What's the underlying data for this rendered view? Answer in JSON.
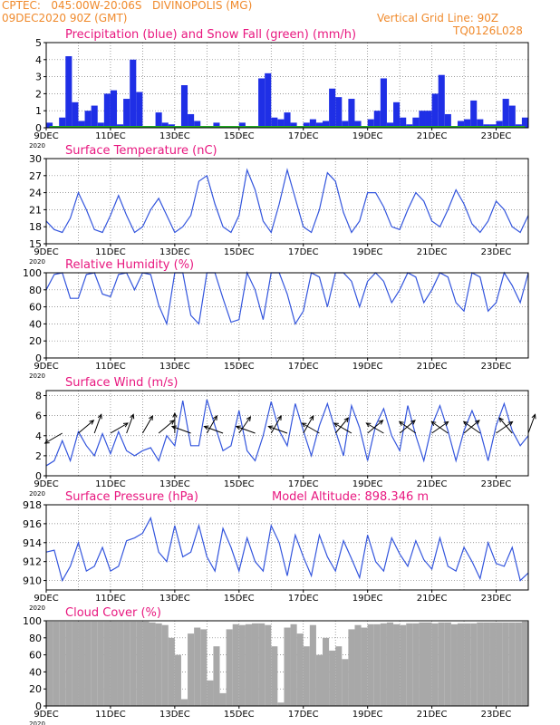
{
  "header": {
    "line1": "CPTEC:   045:00W-20:06S   DIVINOPOLIS (MG)",
    "line2": "09DEC2020 90Z (GMT)",
    "right1": "Vertical Grid Line: 90Z",
    "right2": "TQ0126L028",
    "color": "#f08a2c"
  },
  "x_axis": {
    "tick_labels": [
      "9DEC",
      "11DEC",
      "13DEC",
      "15DEC",
      "17DEC",
      "19DEC",
      "21DEC",
      "23DEC"
    ],
    "year_label": "2020",
    "days": 15
  },
  "colors": {
    "title": "#e8177f",
    "line": "#3355dd",
    "precip": "#1f2fe6",
    "snow": "#22aa22",
    "cloud": "#a8a8a8",
    "grid": "#7a7a7a"
  },
  "chart_data": [
    {
      "type": "bar",
      "title": "Precipitation (blue) and Snow Fall (green) (mm/h)",
      "ylim": [
        0,
        5
      ],
      "yticks": [
        "0",
        "1",
        "2",
        "3",
        "4",
        "5"
      ],
      "x_days": [
        0.1,
        0.3,
        0.5,
        0.7,
        0.9,
        1.1,
        1.3,
        1.5,
        1.7,
        1.9,
        2.1,
        2.3,
        2.5,
        2.7,
        2.9,
        3.1,
        3.3,
        3.5,
        3.7,
        3.9,
        4.1,
        4.3,
        4.5,
        4.7,
        4.9,
        5.1,
        5.3,
        5.5,
        5.7,
        5.9,
        6.1,
        6.3,
        6.5,
        6.7,
        6.9,
        7.1,
        7.3,
        7.5,
        7.7,
        7.9,
        8.1,
        8.3,
        8.5,
        8.7,
        8.9,
        9.1,
        9.3,
        9.5,
        9.7,
        9.9,
        10.1,
        10.3,
        10.5,
        10.7,
        10.9,
        11.1,
        11.3,
        11.5,
        11.7,
        11.9,
        12.1,
        12.3,
        12.5,
        12.7,
        12.9,
        13.1,
        13.3,
        13.5,
        13.7,
        13.9,
        14.1,
        14.3,
        14.5,
        14.7,
        14.9
      ],
      "series": [
        {
          "name": "Precipitation",
          "values": [
            0.3,
            0.1,
            0.6,
            4.2,
            1.5,
            0.4,
            1.0,
            1.3,
            0.3,
            2.0,
            2.2,
            0.2,
            1.7,
            4.0,
            2.1,
            0.1,
            0.0,
            0.9,
            0.3,
            0.2,
            0.1,
            2.5,
            0.8,
            0.4,
            0.0,
            0.1,
            0.3,
            0.1,
            0.0,
            0.1,
            0.3,
            0.1,
            0.1,
            2.9,
            3.2,
            0.6,
            0.5,
            0.9,
            0.3,
            0.0,
            0.3,
            0.5,
            0.3,
            0.4,
            2.3,
            1.8,
            0.4,
            1.7,
            0.4,
            0.1,
            0.5,
            1.0,
            2.9,
            0.3,
            1.5,
            0.6,
            0.2,
            0.6,
            1.0,
            1.0,
            2.0,
            3.1,
            0.8,
            0.1,
            0.4,
            0.5,
            1.6,
            0.5,
            0.2,
            0.2,
            0.4,
            1.7,
            1.3,
            0.2,
            0.6
          ]
        },
        {
          "name": "Snow Fall",
          "values": [
            0,
            0,
            0,
            0,
            0,
            0,
            0,
            0,
            0,
            0,
            0,
            0,
            0,
            0,
            0,
            0,
            0,
            0,
            0,
            0,
            0,
            0,
            0,
            0,
            0,
            0,
            0,
            0,
            0,
            0,
            0,
            0,
            0,
            0,
            0,
            0,
            0,
            0,
            0,
            0,
            0,
            0,
            0,
            0,
            0,
            0,
            0,
            0,
            0,
            0,
            0,
            0,
            0,
            0,
            0,
            0,
            0,
            0,
            0,
            0,
            0,
            0,
            0,
            0,
            0,
            0,
            0,
            0,
            0,
            0,
            0,
            0,
            0,
            0,
            0
          ]
        }
      ]
    },
    {
      "type": "line",
      "title": "Surface Temperature (nC)",
      "ylim": [
        15,
        30
      ],
      "yticks": [
        "15",
        "18",
        "21",
        "24",
        "27",
        "30"
      ],
      "x_days": [
        0,
        0.25,
        0.5,
        0.75,
        1,
        1.25,
        1.5,
        1.75,
        2,
        2.25,
        2.5,
        2.75,
        3,
        3.25,
        3.5,
        3.75,
        4,
        4.25,
        4.5,
        4.75,
        5,
        5.25,
        5.5,
        5.75,
        6,
        6.25,
        6.5,
        6.75,
        7,
        7.25,
        7.5,
        7.75,
        8,
        8.25,
        8.5,
        8.75,
        9,
        9.25,
        9.5,
        9.75,
        10,
        10.25,
        10.5,
        10.75,
        11,
        11.25,
        11.5,
        11.75,
        12,
        12.25,
        12.5,
        12.75,
        13,
        13.25,
        13.5,
        13.75,
        14,
        14.25,
        14.5,
        14.75,
        15
      ],
      "series": [
        {
          "name": "Temperature",
          "values": [
            19,
            17.5,
            17,
            19.5,
            24,
            21,
            17.5,
            17,
            20,
            23.5,
            20,
            17,
            18,
            21,
            23,
            20,
            17,
            18,
            20,
            26,
            27,
            22,
            18,
            17,
            20,
            28,
            24.5,
            19,
            17,
            22,
            28,
            23,
            18,
            17,
            21,
            27.5,
            26,
            20.5,
            17,
            19,
            24,
            24,
            21.5,
            18,
            17.5,
            21,
            24,
            22.5,
            19,
            18,
            21,
            24.5,
            22,
            18.5,
            17,
            19,
            22.5,
            21,
            18,
            17,
            20
          ]
        }
      ]
    },
    {
      "type": "line",
      "title": "Relative Humidity (%)",
      "ylim": [
        0,
        100
      ],
      "yticks": [
        "0",
        "20",
        "40",
        "60",
        "80",
        "100"
      ],
      "x_days": [
        0,
        0.25,
        0.5,
        0.75,
        1,
        1.25,
        1.5,
        1.75,
        2,
        2.25,
        2.5,
        2.75,
        3,
        3.25,
        3.5,
        3.75,
        4,
        4.25,
        4.5,
        4.75,
        5,
        5.25,
        5.5,
        5.75,
        6,
        6.25,
        6.5,
        6.75,
        7,
        7.25,
        7.5,
        7.75,
        8,
        8.25,
        8.5,
        8.75,
        9,
        9.25,
        9.5,
        9.75,
        10,
        10.25,
        10.5,
        10.75,
        11,
        11.25,
        11.5,
        11.75,
        12,
        12.25,
        12.5,
        12.75,
        13,
        13.25,
        13.5,
        13.75,
        14,
        14.25,
        14.5,
        14.75,
        15
      ],
      "series": [
        {
          "name": "Relative Humidity",
          "values": [
            80,
            98,
            100,
            70,
            70,
            98,
            100,
            75,
            72,
            98,
            100,
            80,
            100,
            98,
            62,
            40,
            100,
            100,
            50,
            40,
            100,
            100,
            70,
            42,
            45,
            100,
            80,
            45,
            100,
            100,
            75,
            40,
            55,
            100,
            95,
            60,
            100,
            100,
            90,
            60,
            90,
            100,
            90,
            65,
            80,
            100,
            95,
            65,
            80,
            100,
            95,
            65,
            55,
            100,
            95,
            55,
            65,
            100,
            85,
            65,
            100
          ]
        }
      ]
    },
    {
      "type": "line",
      "title": "Surface Wind (m/s)",
      "ylim": [
        0,
        8.5
      ],
      "yticks": [
        "0",
        "2",
        "4",
        "6",
        "8"
      ],
      "x_days": [
        0,
        0.25,
        0.5,
        0.75,
        1,
        1.25,
        1.5,
        1.75,
        2,
        2.25,
        2.5,
        2.75,
        3,
        3.25,
        3.5,
        3.75,
        4,
        4.25,
        4.5,
        4.75,
        5,
        5.25,
        5.5,
        5.75,
        6,
        6.25,
        6.5,
        6.75,
        7,
        7.25,
        7.5,
        7.75,
        8,
        8.25,
        8.5,
        8.75,
        9,
        9.25,
        9.5,
        9.75,
        10,
        10.25,
        10.5,
        10.75,
        11,
        11.25,
        11.5,
        11.75,
        12,
        12.25,
        12.5,
        12.75,
        13,
        13.25,
        13.5,
        13.75,
        14,
        14.25,
        14.5,
        14.75,
        15
      ],
      "series": [
        {
          "name": "Wind speed",
          "values": [
            1,
            1.5,
            3.5,
            1.5,
            4.4,
            3,
            2,
            4.2,
            2.2,
            4.4,
            2.5,
            2,
            2.5,
            2.8,
            1.5,
            4,
            3,
            7.5,
            3,
            3,
            7.6,
            5,
            2.5,
            3,
            6.5,
            2.5,
            1.5,
            4,
            7.4,
            4.5,
            3,
            7.2,
            4.5,
            2,
            5,
            7.2,
            4.5,
            2,
            7,
            4.8,
            1.5,
            5,
            6.7,
            4,
            2.5,
            7,
            4,
            1.5,
            5,
            7,
            4.5,
            1.5,
            4.5,
            6.5,
            4.5,
            1.5,
            5,
            7.2,
            4.5,
            3,
            4
          ]
        }
      ],
      "arrows": [
        {
          "day": 0.5,
          "dir": 150
        },
        {
          "day": 1.0,
          "dir": 320
        },
        {
          "day": 1.5,
          "dir": 290
        },
        {
          "day": 2.0,
          "dir": 330
        },
        {
          "day": 2.5,
          "dir": 290
        },
        {
          "day": 3.0,
          "dir": 300
        },
        {
          "day": 3.5,
          "dir": 320
        },
        {
          "day": 4.0,
          "dir": 270
        },
        {
          "day": 4.5,
          "dir": 200
        },
        {
          "day": 5.0,
          "dir": 300
        },
        {
          "day": 5.5,
          "dir": 200
        },
        {
          "day": 6.0,
          "dir": 305
        },
        {
          "day": 6.5,
          "dir": 200
        },
        {
          "day": 7.0,
          "dir": 300
        },
        {
          "day": 7.5,
          "dir": 200
        },
        {
          "day": 8.0,
          "dir": 300
        },
        {
          "day": 8.5,
          "dir": 210
        },
        {
          "day": 9.0,
          "dir": 310
        },
        {
          "day": 9.5,
          "dir": 210
        },
        {
          "day": 10.0,
          "dir": 320
        },
        {
          "day": 10.5,
          "dir": 210
        },
        {
          "day": 11.0,
          "dir": 320
        },
        {
          "day": 11.5,
          "dir": 215
        },
        {
          "day": 12.0,
          "dir": 325
        },
        {
          "day": 12.5,
          "dir": 215
        },
        {
          "day": 13.0,
          "dir": 320
        },
        {
          "day": 13.5,
          "dir": 215
        },
        {
          "day": 14.0,
          "dir": 325
        },
        {
          "day": 14.5,
          "dir": 230
        },
        {
          "day": 15.0,
          "dir": 290
        }
      ]
    },
    {
      "type": "line",
      "title": "Surface Pressure (hPa)",
      "annotation": "Model Altitude: 898.346 m",
      "ylim": [
        909,
        918
      ],
      "yticks": [
        "910",
        "912",
        "914",
        "916",
        "918"
      ],
      "ytick_values": [
        910,
        912,
        914,
        916,
        918
      ],
      "x_days": [
        0,
        0.25,
        0.5,
        0.75,
        1,
        1.25,
        1.5,
        1.75,
        2,
        2.25,
        2.5,
        2.75,
        3,
        3.25,
        3.5,
        3.75,
        4,
        4.25,
        4.5,
        4.75,
        5,
        5.25,
        5.5,
        5.75,
        6,
        6.25,
        6.5,
        6.75,
        7,
        7.25,
        7.5,
        7.75,
        8,
        8.25,
        8.5,
        8.75,
        9,
        9.25,
        9.5,
        9.75,
        10,
        10.25,
        10.5,
        10.75,
        11,
        11.25,
        11.5,
        11.75,
        12,
        12.25,
        12.5,
        12.75,
        13,
        13.25,
        13.5,
        13.75,
        14,
        14.25,
        14.5,
        14.75,
        15
      ],
      "series": [
        {
          "name": "Surface Pressure",
          "values": [
            913,
            913.2,
            910,
            911.5,
            914,
            911,
            911.5,
            913.5,
            911,
            911.5,
            914.2,
            914.5,
            915,
            916.6,
            913,
            912,
            915.8,
            912.5,
            913,
            915.8,
            912.5,
            911,
            915.5,
            913.5,
            911,
            914.5,
            912,
            911,
            915.8,
            914,
            910.5,
            914.8,
            912.5,
            910.5,
            914.8,
            912.5,
            911,
            914.2,
            912.3,
            910.3,
            914.8,
            912,
            911,
            914.5,
            912.8,
            911.5,
            914.2,
            912.2,
            911.2,
            914.5,
            911.5,
            911,
            913.5,
            912,
            910.2,
            914,
            911.8,
            911.5,
            913.5,
            910,
            910.8
          ]
        }
      ]
    },
    {
      "type": "bar",
      "title": "Cloud Cover (%)",
      "ylim": [
        0,
        100
      ],
      "yticks": [
        "0",
        "20",
        "40",
        "60",
        "80",
        "100"
      ],
      "x_days": [
        0.1,
        0.3,
        0.5,
        0.7,
        0.9,
        1.1,
        1.3,
        1.5,
        1.7,
        1.9,
        2.1,
        2.3,
        2.5,
        2.7,
        2.9,
        3.1,
        3.3,
        3.5,
        3.7,
        3.9,
        4.1,
        4.3,
        4.5,
        4.7,
        4.9,
        5.1,
        5.3,
        5.5,
        5.7,
        5.9,
        6.1,
        6.3,
        6.5,
        6.7,
        6.9,
        7.1,
        7.3,
        7.5,
        7.7,
        7.9,
        8.1,
        8.3,
        8.5,
        8.7,
        8.9,
        9.1,
        9.3,
        9.5,
        9.7,
        9.9,
        10.1,
        10.3,
        10.5,
        10.7,
        10.9,
        11.1,
        11.3,
        11.5,
        11.7,
        11.9,
        12.1,
        12.3,
        12.5,
        12.7,
        12.9,
        13.1,
        13.3,
        13.5,
        13.7,
        13.9,
        14.1,
        14.3,
        14.5,
        14.7,
        14.9
      ],
      "series": [
        {
          "name": "Cloud Cover",
          "values": [
            99,
            99,
            99,
            99,
            99,
            99,
            99,
            99,
            99,
            99,
            99,
            99,
            99,
            99,
            99,
            99,
            98,
            97,
            95,
            80,
            60,
            8,
            85,
            92,
            90,
            30,
            70,
            15,
            90,
            96,
            95,
            96,
            97,
            97,
            95,
            70,
            4,
            92,
            96,
            85,
            70,
            95,
            60,
            80,
            65,
            70,
            55,
            90,
            95,
            92,
            96,
            96,
            97,
            98,
            96,
            95,
            97,
            97,
            98,
            98,
            97,
            98,
            98,
            96,
            97,
            97,
            97,
            98,
            98,
            98,
            98,
            98,
            98,
            98,
            99
          ]
        }
      ]
    }
  ]
}
